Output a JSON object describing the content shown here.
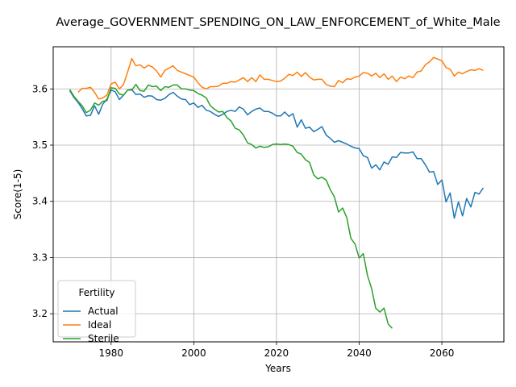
{
  "chart_data": {
    "type": "line",
    "title": "Average_GOVERNMENT_SPENDING_ON_LAW_ENFORCEMENT_of_White_Male",
    "xlabel": "Years",
    "ylabel": "Score(1-5)",
    "xlim": [
      1966,
      2075
    ],
    "ylim": [
      3.15,
      3.675
    ],
    "xticks": [
      1980,
      2000,
      2020,
      2040,
      2060
    ],
    "yticks": [
      3.2,
      3.3,
      3.4,
      3.5,
      3.6
    ],
    "grid": true,
    "legend": {
      "title": "Fertility",
      "placement": "lower-left"
    },
    "series": [
      {
        "name": "Actual",
        "color": "#1f77b4",
        "points": [
          [
            1970,
            3.597
          ],
          [
            1971,
            3.585
          ],
          [
            1972,
            3.576
          ],
          [
            1973,
            3.565
          ],
          [
            1974,
            3.552
          ],
          [
            1975,
            3.553
          ],
          [
            1976,
            3.57
          ],
          [
            1977,
            3.555
          ],
          [
            1978,
            3.573
          ],
          [
            1979,
            3.582
          ],
          [
            1980,
            3.598
          ],
          [
            1981,
            3.595
          ],
          [
            1982,
            3.581
          ],
          [
            1983,
            3.589
          ],
          [
            1984,
            3.598
          ],
          [
            1985,
            3.599
          ],
          [
            1986,
            3.59
          ],
          [
            1987,
            3.591
          ],
          [
            1988,
            3.585
          ],
          [
            1989,
            3.588
          ],
          [
            1990,
            3.587
          ],
          [
            1991,
            3.581
          ],
          [
            1992,
            3.58
          ],
          [
            1993,
            3.583
          ],
          [
            1994,
            3.59
          ],
          [
            1995,
            3.594
          ],
          [
            1996,
            3.587
          ],
          [
            1997,
            3.582
          ],
          [
            1998,
            3.581
          ],
          [
            1999,
            3.572
          ],
          [
            2000,
            3.575
          ],
          [
            2001,
            3.567
          ],
          [
            2002,
            3.571
          ],
          [
            2003,
            3.562
          ],
          [
            2004,
            3.56
          ],
          [
            2005,
            3.555
          ],
          [
            2006,
            3.551
          ],
          [
            2007,
            3.555
          ],
          [
            2008,
            3.56
          ],
          [
            2009,
            3.562
          ],
          [
            2010,
            3.56
          ],
          [
            2011,
            3.568
          ],
          [
            2012,
            3.564
          ],
          [
            2013,
            3.554
          ],
          [
            2014,
            3.56
          ],
          [
            2015,
            3.564
          ],
          [
            2016,
            3.566
          ],
          [
            2017,
            3.56
          ],
          [
            2018,
            3.56
          ],
          [
            2019,
            3.557
          ],
          [
            2020,
            3.552
          ],
          [
            2021,
            3.552
          ],
          [
            2022,
            3.559
          ],
          [
            2023,
            3.551
          ],
          [
            2024,
            3.556
          ],
          [
            2025,
            3.532
          ],
          [
            2026,
            3.545
          ],
          [
            2027,
            3.53
          ],
          [
            2028,
            3.532
          ],
          [
            2029,
            3.524
          ],
          [
            2030,
            3.528
          ],
          [
            2031,
            3.533
          ],
          [
            2032,
            3.518
          ],
          [
            2033,
            3.512
          ],
          [
            2034,
            3.505
          ],
          [
            2035,
            3.508
          ],
          [
            2036,
            3.505
          ],
          [
            2037,
            3.502
          ],
          [
            2038,
            3.498
          ],
          [
            2039,
            3.495
          ],
          [
            2040,
            3.494
          ],
          [
            2041,
            3.481
          ],
          [
            2042,
            3.478
          ],
          [
            2043,
            3.459
          ],
          [
            2044,
            3.465
          ],
          [
            2045,
            3.456
          ],
          [
            2046,
            3.47
          ],
          [
            2047,
            3.466
          ],
          [
            2048,
            3.479
          ],
          [
            2049,
            3.478
          ],
          [
            2050,
            3.487
          ],
          [
            2051,
            3.486
          ],
          [
            2052,
            3.486
          ],
          [
            2053,
            3.488
          ],
          [
            2054,
            3.476
          ],
          [
            2055,
            3.476
          ],
          [
            2056,
            3.465
          ],
          [
            2057,
            3.452
          ],
          [
            2058,
            3.453
          ],
          [
            2059,
            3.43
          ],
          [
            2060,
            3.438
          ],
          [
            2061,
            3.399
          ],
          [
            2062,
            3.415
          ],
          [
            2063,
            3.37
          ],
          [
            2064,
            3.399
          ],
          [
            2065,
            3.374
          ],
          [
            2066,
            3.405
          ],
          [
            2067,
            3.39
          ],
          [
            2068,
            3.416
          ],
          [
            2069,
            3.413
          ],
          [
            2070,
            3.424
          ]
        ]
      },
      {
        "name": "Ideal",
        "color": "#ff7f0e",
        "points": [
          [
            1972,
            3.594
          ],
          [
            1973,
            3.601
          ],
          [
            1974,
            3.601
          ],
          [
            1975,
            3.603
          ],
          [
            1976,
            3.594
          ],
          [
            1977,
            3.582
          ],
          [
            1978,
            3.584
          ],
          [
            1979,
            3.589
          ],
          [
            1980,
            3.609
          ],
          [
            1981,
            3.612
          ],
          [
            1982,
            3.6
          ],
          [
            1983,
            3.608
          ],
          [
            1984,
            3.63
          ],
          [
            1985,
            3.654
          ],
          [
            1986,
            3.641
          ],
          [
            1987,
            3.643
          ],
          [
            1988,
            3.637
          ],
          [
            1989,
            3.642
          ],
          [
            1990,
            3.639
          ],
          [
            1991,
            3.632
          ],
          [
            1992,
            3.621
          ],
          [
            1993,
            3.633
          ],
          [
            1994,
            3.637
          ],
          [
            1995,
            3.641
          ],
          [
            1996,
            3.633
          ],
          [
            1997,
            3.63
          ],
          [
            1998,
            3.627
          ],
          [
            1999,
            3.624
          ],
          [
            2000,
            3.621
          ],
          [
            2001,
            3.611
          ],
          [
            2002,
            3.603
          ],
          [
            2003,
            3.6
          ],
          [
            2004,
            3.604
          ],
          [
            2005,
            3.604
          ],
          [
            2006,
            3.605
          ],
          [
            2007,
            3.61
          ],
          [
            2008,
            3.61
          ],
          [
            2009,
            3.613
          ],
          [
            2010,
            3.612
          ],
          [
            2011,
            3.616
          ],
          [
            2012,
            3.62
          ],
          [
            2013,
            3.613
          ],
          [
            2014,
            3.62
          ],
          [
            2015,
            3.613
          ],
          [
            2016,
            3.625
          ],
          [
            2017,
            3.617
          ],
          [
            2018,
            3.617
          ],
          [
            2019,
            3.615
          ],
          [
            2020,
            3.613
          ],
          [
            2021,
            3.614
          ],
          [
            2022,
            3.619
          ],
          [
            2023,
            3.626
          ],
          [
            2024,
            3.624
          ],
          [
            2025,
            3.63
          ],
          [
            2026,
            3.622
          ],
          [
            2027,
            3.629
          ],
          [
            2028,
            3.621
          ],
          [
            2029,
            3.616
          ],
          [
            2030,
            3.617
          ],
          [
            2031,
            3.617
          ],
          [
            2032,
            3.608
          ],
          [
            2033,
            3.605
          ],
          [
            2034,
            3.604
          ],
          [
            2035,
            3.615
          ],
          [
            2036,
            3.611
          ],
          [
            2037,
            3.618
          ],
          [
            2038,
            3.617
          ],
          [
            2039,
            3.621
          ],
          [
            2040,
            3.623
          ],
          [
            2041,
            3.629
          ],
          [
            2042,
            3.628
          ],
          [
            2043,
            3.623
          ],
          [
            2044,
            3.628
          ],
          [
            2045,
            3.62
          ],
          [
            2046,
            3.627
          ],
          [
            2047,
            3.617
          ],
          [
            2048,
            3.623
          ],
          [
            2049,
            3.613
          ],
          [
            2050,
            3.621
          ],
          [
            2051,
            3.618
          ],
          [
            2052,
            3.623
          ],
          [
            2053,
            3.62
          ],
          [
            2054,
            3.63
          ],
          [
            2055,
            3.632
          ],
          [
            2056,
            3.643
          ],
          [
            2057,
            3.648
          ],
          [
            2058,
            3.656
          ],
          [
            2059,
            3.653
          ],
          [
            2060,
            3.65
          ],
          [
            2061,
            3.638
          ],
          [
            2062,
            3.635
          ],
          [
            2063,
            3.623
          ],
          [
            2064,
            3.63
          ],
          [
            2065,
            3.627
          ],
          [
            2066,
            3.631
          ],
          [
            2067,
            3.634
          ],
          [
            2068,
            3.633
          ],
          [
            2069,
            3.636
          ],
          [
            2070,
            3.633
          ]
        ]
      },
      {
        "name": "Sterile",
        "color": "#2ca02c",
        "points": [
          [
            1970,
            3.599
          ],
          [
            1971,
            3.587
          ],
          [
            1972,
            3.578
          ],
          [
            1973,
            3.57
          ],
          [
            1974,
            3.558
          ],
          [
            1975,
            3.562
          ],
          [
            1976,
            3.575
          ],
          [
            1977,
            3.571
          ],
          [
            1978,
            3.578
          ],
          [
            1979,
            3.579
          ],
          [
            1980,
            3.602
          ],
          [
            1981,
            3.601
          ],
          [
            1982,
            3.591
          ],
          [
            1983,
            3.589
          ],
          [
            1984,
            3.598
          ],
          [
            1985,
            3.598
          ],
          [
            1986,
            3.608
          ],
          [
            1987,
            3.597
          ],
          [
            1988,
            3.596
          ],
          [
            1989,
            3.607
          ],
          [
            1990,
            3.604
          ],
          [
            1991,
            3.605
          ],
          [
            1992,
            3.597
          ],
          [
            1993,
            3.604
          ],
          [
            1994,
            3.603
          ],
          [
            1995,
            3.607
          ],
          [
            1996,
            3.607
          ],
          [
            1997,
            3.6
          ],
          [
            1998,
            3.6
          ],
          [
            1999,
            3.598
          ],
          [
            2000,
            3.597
          ],
          [
            2001,
            3.592
          ],
          [
            2002,
            3.589
          ],
          [
            2003,
            3.584
          ],
          [
            2004,
            3.57
          ],
          [
            2005,
            3.564
          ],
          [
            2006,
            3.559
          ],
          [
            2007,
            3.56
          ],
          [
            2008,
            3.549
          ],
          [
            2009,
            3.543
          ],
          [
            2010,
            3.53
          ],
          [
            2011,
            3.527
          ],
          [
            2012,
            3.518
          ],
          [
            2013,
            3.504
          ],
          [
            2014,
            3.501
          ],
          [
            2015,
            3.495
          ],
          [
            2016,
            3.498
          ],
          [
            2017,
            3.496
          ],
          [
            2018,
            3.497
          ],
          [
            2019,
            3.501
          ],
          [
            2020,
            3.502
          ],
          [
            2021,
            3.501
          ],
          [
            2022,
            3.502
          ],
          [
            2023,
            3.501
          ],
          [
            2024,
            3.498
          ],
          [
            2025,
            3.487
          ],
          [
            2026,
            3.484
          ],
          [
            2027,
            3.474
          ],
          [
            2028,
            3.469
          ],
          [
            2029,
            3.447
          ],
          [
            2030,
            3.44
          ],
          [
            2031,
            3.443
          ],
          [
            2032,
            3.438
          ],
          [
            2033,
            3.421
          ],
          [
            2034,
            3.408
          ],
          [
            2035,
            3.381
          ],
          [
            2036,
            3.388
          ],
          [
            2037,
            3.371
          ],
          [
            2038,
            3.334
          ],
          [
            2039,
            3.324
          ],
          [
            2040,
            3.299
          ],
          [
            2041,
            3.307
          ],
          [
            2042,
            3.268
          ],
          [
            2043,
            3.245
          ],
          [
            2044,
            3.21
          ],
          [
            2045,
            3.203
          ],
          [
            2046,
            3.21
          ],
          [
            2047,
            3.182
          ],
          [
            2048,
            3.174
          ]
        ]
      }
    ]
  }
}
